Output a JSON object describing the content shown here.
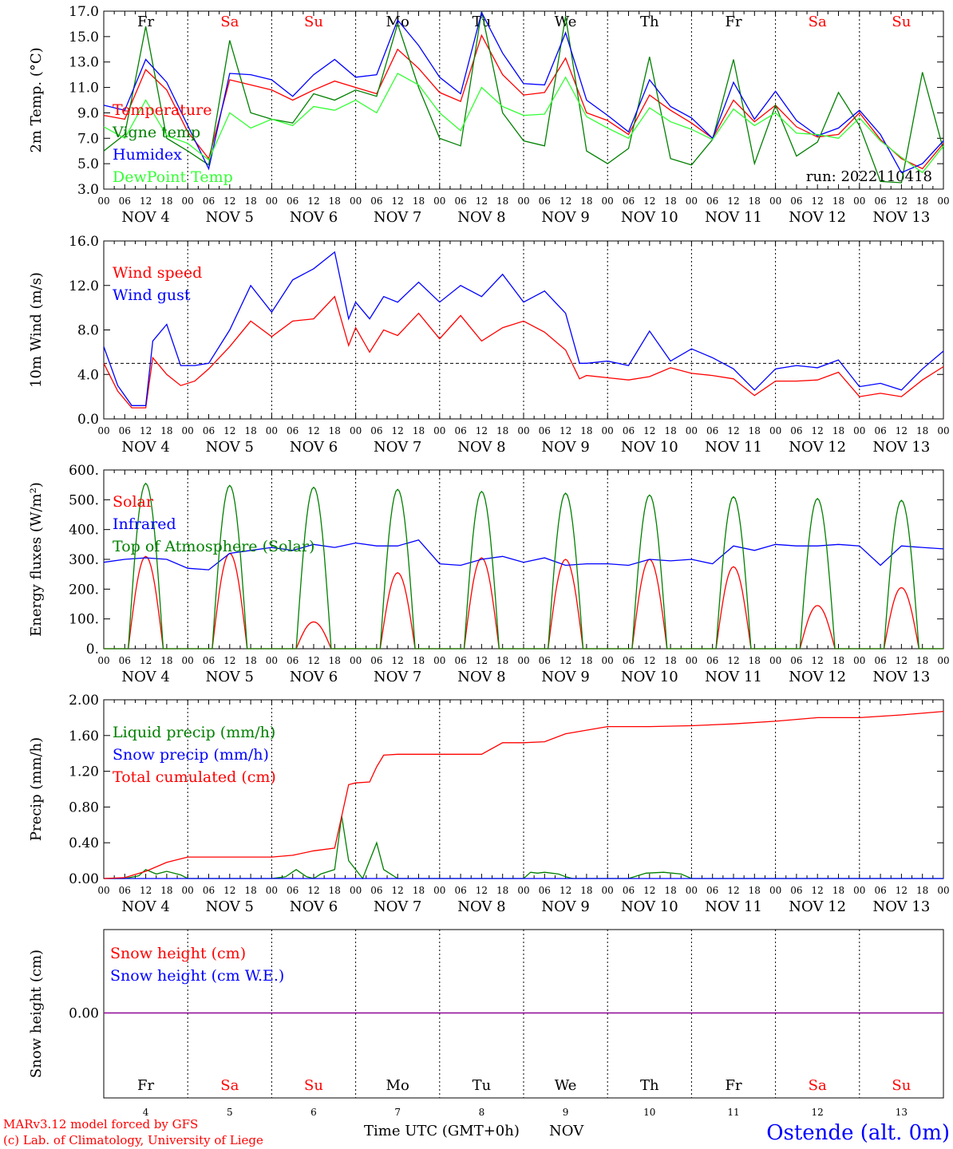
{
  "chart_data": {
    "type": "line",
    "x_start": "NOV 4 00 UTC",
    "x_end": "NOV 14 00 UTC",
    "day_names": [
      "Fr",
      "Sa",
      "Su",
      "Mo",
      "Tu",
      "We",
      "Th",
      "Fr",
      "Sa",
      "Su"
    ],
    "day_name_colors": [
      "#000000",
      "#ff0000",
      "#ff0000",
      "#000000",
      "#000000",
      "#000000",
      "#000000",
      "#000000",
      "#ff0000",
      "#ff0000"
    ],
    "date_labels": [
      "NOV  4",
      "NOV  5",
      "NOV  6",
      "NOV  7",
      "NOV  8",
      "NOV  9",
      "NOV 10",
      "NOV 11",
      "NOV 12",
      "NOV 13"
    ],
    "hour_ticks": [
      "00",
      "06",
      "12",
      "18"
    ],
    "bottom_day_numbers": [
      "4",
      "5",
      "6",
      "7",
      "8",
      "9",
      "10",
      "11",
      "12",
      "13"
    ],
    "xlabel": "Time UTC (GMT+0h)",
    "xlabel_month": "NOV",
    "footer_left": [
      "MARv3.12 model forced by GFS",
      "(c) Lab. of Climatology, University of Liege"
    ],
    "station": "Ostende (alt. 0m)",
    "panels": [
      {
        "id": "temperature",
        "ylabel": "2m Temp. (°C)",
        "ylim": [
          3.0,
          17.0
        ],
        "ytick_labels": [
          "3.0",
          "5.0",
          "7.0",
          "9.0",
          "11.0",
          "13.0",
          "15.0",
          "17.0"
        ],
        "annotation": "run: 2022110418",
        "series": [
          {
            "name": "Temperature",
            "color": "#ff0000",
            "x": [
              0,
              6,
              12,
              18,
              24,
              30,
              36,
              42,
              48,
              54,
              60,
              66,
              72,
              78,
              84,
              90,
              96,
              102,
              108,
              114,
              120,
              126,
              132,
              138,
              144,
              150,
              156,
              162,
              168,
              174,
              180,
              186,
              192,
              198,
              204,
              210,
              216,
              222,
              228,
              234,
              240
            ],
            "y": [
              8.8,
              8.5,
              12.4,
              10.8,
              7.5,
              5.4,
              11.6,
              11.2,
              10.8,
              10.0,
              10.8,
              11.5,
              11.0,
              10.5,
              14.0,
              12.5,
              10.6,
              9.9,
              15.1,
              12.0,
              10.4,
              10.6,
              13.3,
              9.0,
              8.4,
              7.3,
              10.4,
              9.2,
              8.2,
              7.0,
              10.0,
              8.3,
              9.6,
              7.9,
              7.1,
              7.3,
              9.0,
              6.9,
              5.4,
              4.6,
              6.6
            ]
          },
          {
            "name": "Vigne temp",
            "color": "#008000",
            "x": [
              0,
              6,
              12,
              18,
              24,
              30,
              36,
              42,
              48,
              54,
              60,
              66,
              72,
              78,
              84,
              90,
              96,
              102,
              108,
              114,
              120,
              126,
              132,
              138,
              144,
              150,
              156,
              162,
              168,
              174,
              180,
              186,
              192,
              198,
              204,
              210,
              216,
              222,
              228,
              234,
              240
            ],
            "y": [
              6.0,
              7.3,
              15.8,
              7.0,
              6.0,
              4.9,
              14.7,
              9.0,
              8.5,
              8.2,
              10.5,
              10.0,
              10.8,
              10.3,
              16.0,
              11.0,
              7.0,
              6.4,
              17.0,
              9.0,
              6.8,
              6.4,
              16.6,
              6.0,
              5.0,
              6.2,
              13.4,
              5.4,
              4.9,
              6.9,
              13.2,
              5.0,
              9.6,
              5.6,
              6.7,
              10.6,
              8.0,
              3.6,
              3.5,
              12.2,
              6.1
            ]
          },
          {
            "name": "Humidex",
            "color": "#0000ff",
            "x": [
              0,
              6,
              12,
              18,
              24,
              30,
              36,
              42,
              48,
              54,
              60,
              66,
              72,
              78,
              84,
              90,
              96,
              102,
              108,
              114,
              120,
              126,
              132,
              138,
              144,
              150,
              156,
              162,
              168,
              174,
              180,
              186,
              192,
              198,
              204,
              210,
              216,
              222,
              228,
              234,
              240
            ],
            "y": [
              9.6,
              9.2,
              13.2,
              11.4,
              8.0,
              4.6,
              12.1,
              12.0,
              11.6,
              10.3,
              12.0,
              13.2,
              11.8,
              12.0,
              16.3,
              14.3,
              11.8,
              10.5,
              16.9,
              13.7,
              11.3,
              11.2,
              15.3,
              10.0,
              8.8,
              7.5,
              11.6,
              9.5,
              8.6,
              7.0,
              11.4,
              8.5,
              10.7,
              8.4,
              7.2,
              7.8,
              9.2,
              7.3,
              4.3,
              5.0,
              6.8
            ]
          },
          {
            "name": "DewPoint Temp",
            "color": "#33ff33",
            "x": [
              0,
              6,
              12,
              18,
              24,
              30,
              36,
              42,
              48,
              54,
              60,
              66,
              72,
              78,
              84,
              90,
              96,
              102,
              108,
              114,
              120,
              126,
              132,
              138,
              144,
              150,
              156,
              162,
              168,
              174,
              180,
              186,
              192,
              198,
              204,
              210,
              216,
              222,
              228,
              234,
              240
            ],
            "y": [
              7.9,
              7.0,
              10.0,
              7.2,
              6.6,
              5.3,
              9.0,
              7.8,
              8.5,
              8.0,
              9.5,
              9.2,
              10.0,
              9.0,
              12.1,
              11.2,
              9.0,
              7.6,
              11.0,
              9.5,
              8.8,
              8.9,
              11.8,
              8.7,
              7.8,
              7.0,
              9.4,
              8.3,
              7.7,
              6.9,
              9.3,
              8.0,
              9.0,
              7.4,
              7.3,
              7.0,
              8.6,
              6.8,
              5.5,
              4.3,
              6.4
            ]
          }
        ]
      },
      {
        "id": "wind",
        "ylabel": "10m Wind (m/s)",
        "ylim": [
          0.0,
          16.0
        ],
        "ytick_labels": [
          "0.0",
          "4.0",
          "8.0",
          "12.0",
          "16.0"
        ],
        "reference_line": 5.0,
        "series": [
          {
            "name": "Wind speed",
            "color": "#ff0000",
            "x": [
              0,
              4,
              8,
              12,
              14,
              18,
              22,
              26,
              30,
              36,
              42,
              48,
              54,
              60,
              66,
              70,
              72,
              76,
              80,
              84,
              90,
              96,
              102,
              108,
              114,
              120,
              126,
              132,
              136,
              138,
              144,
              150,
              156,
              162,
              168,
              174,
              180,
              186,
              192,
              198,
              204,
              210,
              216,
              222,
              228,
              234,
              240
            ],
            "y": [
              5.0,
              2.5,
              1.0,
              1.0,
              5.5,
              4.0,
              3.0,
              3.4,
              4.5,
              6.5,
              8.8,
              7.4,
              8.8,
              9.0,
              11.0,
              6.6,
              8.2,
              6.0,
              8.0,
              7.5,
              9.5,
              7.2,
              9.3,
              7.0,
              8.2,
              8.8,
              7.8,
              6.2,
              3.6,
              3.9,
              3.7,
              3.5,
              3.8,
              4.6,
              4.1,
              3.9,
              3.6,
              2.1,
              3.4,
              3.4,
              3.5,
              4.2,
              2.0,
              2.3,
              2.0,
              3.5,
              4.7
            ]
          },
          {
            "name": "Wind gust",
            "color": "#0000ff",
            "x": [
              0,
              4,
              8,
              12,
              14,
              18,
              22,
              26,
              30,
              36,
              42,
              48,
              54,
              60,
              66,
              70,
              72,
              76,
              80,
              84,
              90,
              96,
              102,
              108,
              114,
              120,
              126,
              132,
              136,
              138,
              144,
              150,
              156,
              162,
              168,
              174,
              180,
              186,
              192,
              198,
              204,
              210,
              216,
              222,
              228,
              234,
              240
            ],
            "y": [
              6.5,
              3.0,
              1.2,
              1.2,
              7.0,
              8.5,
              4.8,
              4.8,
              5.0,
              8.0,
              12.0,
              9.6,
              12.5,
              13.5,
              15.0,
              9.0,
              10.5,
              9.0,
              11.0,
              10.5,
              12.3,
              10.5,
              12.0,
              11.0,
              13.0,
              10.5,
              11.5,
              9.5,
              5.0,
              5.0,
              5.2,
              4.8,
              7.9,
              5.2,
              6.3,
              5.5,
              4.5,
              2.6,
              4.5,
              4.8,
              4.6,
              5.3,
              2.9,
              3.2,
              2.6,
              4.5,
              6.1
            ]
          }
        ]
      },
      {
        "id": "energy",
        "ylabel": "Energy fluxes (W/m²)",
        "ylim": [
          0,
          600
        ],
        "ytick_labels": [
          "0.",
          "100.",
          "200.",
          "300.",
          "400.",
          "500.",
          "600."
        ],
        "series": [
          {
            "name": "Solar",
            "color": "#ff0000",
            "peaks": [
              310,
              320,
              90,
              255,
              305,
              300,
              300,
              275,
              145,
              205
            ]
          },
          {
            "name": "Infrared",
            "color": "#0000ff",
            "x": [
              0,
              6,
              12,
              18,
              24,
              30,
              36,
              42,
              48,
              54,
              60,
              66,
              72,
              78,
              84,
              90,
              96,
              102,
              108,
              114,
              120,
              126,
              132,
              138,
              144,
              150,
              156,
              162,
              168,
              174,
              180,
              186,
              192,
              198,
              204,
              210,
              216,
              222,
              228,
              234,
              240
            ],
            "y": [
              290,
              300,
              305,
              300,
              270,
              265,
              320,
              330,
              340,
              330,
              350,
              340,
              355,
              345,
              345,
              365,
              285,
              280,
              300,
              310,
              290,
              305,
              280,
              285,
              285,
              280,
              300,
              295,
              300,
              285,
              345,
              330,
              350,
              345,
              345,
              350,
              345,
              280,
              345,
              340,
              335
            ]
          },
          {
            "name": "Top of Atmosphere (Solar)",
            "color": "#008000",
            "peaks": [
              555,
              548,
              542,
              535,
              528,
              522,
              516,
              510,
              504,
              498
            ]
          }
        ]
      },
      {
        "id": "precip",
        "ylabel": "Precip (mm/h)",
        "ylim": [
          0.0,
          2.0
        ],
        "ytick_labels": [
          "0.00",
          "0.40",
          "0.80",
          "1.20",
          "1.60",
          "2.00"
        ],
        "series": [
          {
            "name": "Liquid precip (mm/h)",
            "color": "#008000",
            "x": [
              0,
              6,
              10,
              12,
              15,
              18,
              22,
              24,
              48,
              52,
              55,
              58,
              60,
              62,
              66,
              68,
              70,
              74,
              76,
              78,
              80,
              84,
              86,
              90,
              120,
              122,
              124,
              126,
              130,
              132,
              134,
              150,
              155,
              160,
              165,
              168,
              240
            ],
            "y": [
              0,
              0,
              0.03,
              0.1,
              0.05,
              0.08,
              0.04,
              0,
              0,
              0.02,
              0.1,
              0.02,
              0,
              0.05,
              0.1,
              0.7,
              0.2,
              0,
              0.2,
              0.4,
              0.1,
              0,
              0,
              0,
              0,
              0.07,
              0.06,
              0.07,
              0.05,
              0.02,
              0,
              0,
              0.06,
              0.07,
              0.05,
              0,
              0
            ]
          },
          {
            "name": "Snow precip (mm/h)",
            "color": "#0000ff",
            "x": [
              0,
              240
            ],
            "y": [
              0,
              0
            ]
          },
          {
            "name": "Total cumulated (cm)",
            "color": "#ff0000",
            "x": [
              0,
              6,
              12,
              18,
              24,
              48,
              54,
              60,
              66,
              70,
              72,
              76,
              78,
              80,
              84,
              90,
              96,
              108,
              114,
              120,
              126,
              132,
              144,
              156,
              168,
              180,
              192,
              204,
              216,
              228,
              240
            ],
            "y": [
              0,
              0.01,
              0.08,
              0.18,
              0.24,
              0.24,
              0.26,
              0.31,
              0.34,
              1.05,
              1.07,
              1.08,
              1.25,
              1.38,
              1.39,
              1.39,
              1.39,
              1.39,
              1.52,
              1.52,
              1.53,
              1.62,
              1.7,
              1.7,
              1.71,
              1.73,
              1.76,
              1.8,
              1.8,
              1.83,
              1.87
            ]
          }
        ]
      },
      {
        "id": "snow",
        "ylabel": "Snow height (cm)",
        "ytick_labels": [
          "0.00"
        ],
        "series": [
          {
            "name": "Snow height (cm)",
            "color": "#ff0000",
            "x": [
              0,
              240
            ],
            "y": [
              0,
              0
            ]
          },
          {
            "name": "Snow height (cm W.E.)",
            "color": "#0000ff",
            "x": [
              0,
              240
            ],
            "y": [
              0,
              0
            ]
          }
        ]
      }
    ]
  }
}
